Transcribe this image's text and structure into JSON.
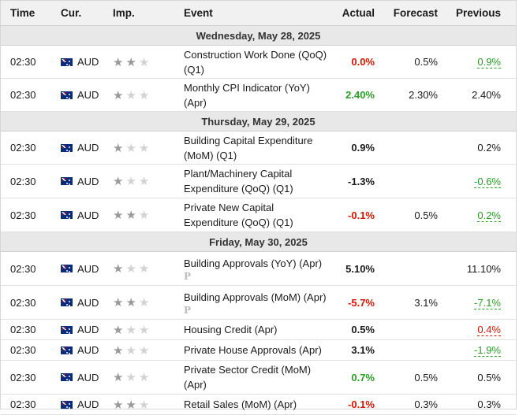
{
  "headers": {
    "time": "Time",
    "currency": "Cur.",
    "importance": "Imp.",
    "event": "Event",
    "actual": "Actual",
    "forecast": "Forecast",
    "previous": "Previous"
  },
  "days": [
    {
      "label": "Wednesday, May 28, 2025",
      "events": [
        {
          "time": "02:30",
          "currency": "AUD",
          "importance": 2,
          "event": "Construction Work Done (QoQ) (Q1)",
          "actual": "0.0%",
          "actual_color": "red",
          "forecast": "0.5%",
          "previous": "0.9%",
          "previous_color": "green",
          "preliminary": false
        },
        {
          "time": "02:30",
          "currency": "AUD",
          "importance": 1,
          "event": "Monthly CPI Indicator (YoY) (Apr)",
          "actual": "2.40%",
          "actual_color": "green",
          "forecast": "2.30%",
          "previous": "2.40%",
          "previous_color": "",
          "preliminary": false
        }
      ]
    },
    {
      "label": "Thursday, May 29, 2025",
      "events": [
        {
          "time": "02:30",
          "currency": "AUD",
          "importance": 1,
          "event": "Building Capital Expenditure (MoM) (Q1)",
          "actual": "0.9%",
          "actual_color": "",
          "forecast": "",
          "previous": "0.2%",
          "previous_color": "",
          "preliminary": false
        },
        {
          "time": "02:30",
          "currency": "AUD",
          "importance": 1,
          "event": "Plant/Machinery Capital Expenditure (QoQ) (Q1)",
          "actual": "-1.3%",
          "actual_color": "",
          "forecast": "",
          "previous": "-0.6%",
          "previous_color": "green",
          "preliminary": false
        },
        {
          "time": "02:30",
          "currency": "AUD",
          "importance": 2,
          "event": "Private New Capital Expenditure (QoQ) (Q1)",
          "actual": "-0.1%",
          "actual_color": "red",
          "forecast": "0.5%",
          "previous": "0.2%",
          "previous_color": "green",
          "preliminary": false
        }
      ]
    },
    {
      "label": "Friday, May 30, 2025",
      "events": [
        {
          "time": "02:30",
          "currency": "AUD",
          "importance": 1,
          "event": "Building Approvals (YoY) (Apr)",
          "actual": "5.10%",
          "actual_color": "",
          "forecast": "",
          "previous": "11.10%",
          "previous_color": "",
          "preliminary": true
        },
        {
          "time": "02:30",
          "currency": "AUD",
          "importance": 2,
          "event": "Building Approvals (MoM) (Apr)",
          "actual": "-5.7%",
          "actual_color": "red",
          "forecast": "3.1%",
          "previous": "-7.1%",
          "previous_color": "green",
          "preliminary": true
        },
        {
          "time": "02:30",
          "currency": "AUD",
          "importance": 1,
          "event": "Housing Credit (Apr)",
          "actual": "0.5%",
          "actual_color": "",
          "forecast": "",
          "previous": "0.4%",
          "previous_color": "red",
          "preliminary": false
        },
        {
          "time": "02:30",
          "currency": "AUD",
          "importance": 1,
          "event": "Private House Approvals (Apr)",
          "actual": "3.1%",
          "actual_color": "",
          "forecast": "",
          "previous": "-1.9%",
          "previous_color": "green",
          "preliminary": false
        },
        {
          "time": "02:30",
          "currency": "AUD",
          "importance": 1,
          "event": "Private Sector Credit (MoM) (Apr)",
          "actual": "0.7%",
          "actual_color": "green",
          "forecast": "0.5%",
          "previous": "0.5%",
          "previous_color": "",
          "preliminary": false
        },
        {
          "time": "02:30",
          "currency": "AUD",
          "importance": 2,
          "event": "Retail Sales (MoM) (Apr)",
          "actual": "-0.1%",
          "actual_color": "red",
          "forecast": "0.3%",
          "previous": "0.3%",
          "previous_color": "",
          "preliminary": false
        }
      ]
    }
  ],
  "preliminary_glyph": "P",
  "colors": {
    "red": "#d91400",
    "green": "#2a9d28",
    "header_bg": "#f1f1f1",
    "day_bg": "#e8e8e8"
  },
  "icons": {
    "flag": "australia-flag-icon",
    "star": "star-icon",
    "preliminary": "preliminary-p-icon"
  }
}
